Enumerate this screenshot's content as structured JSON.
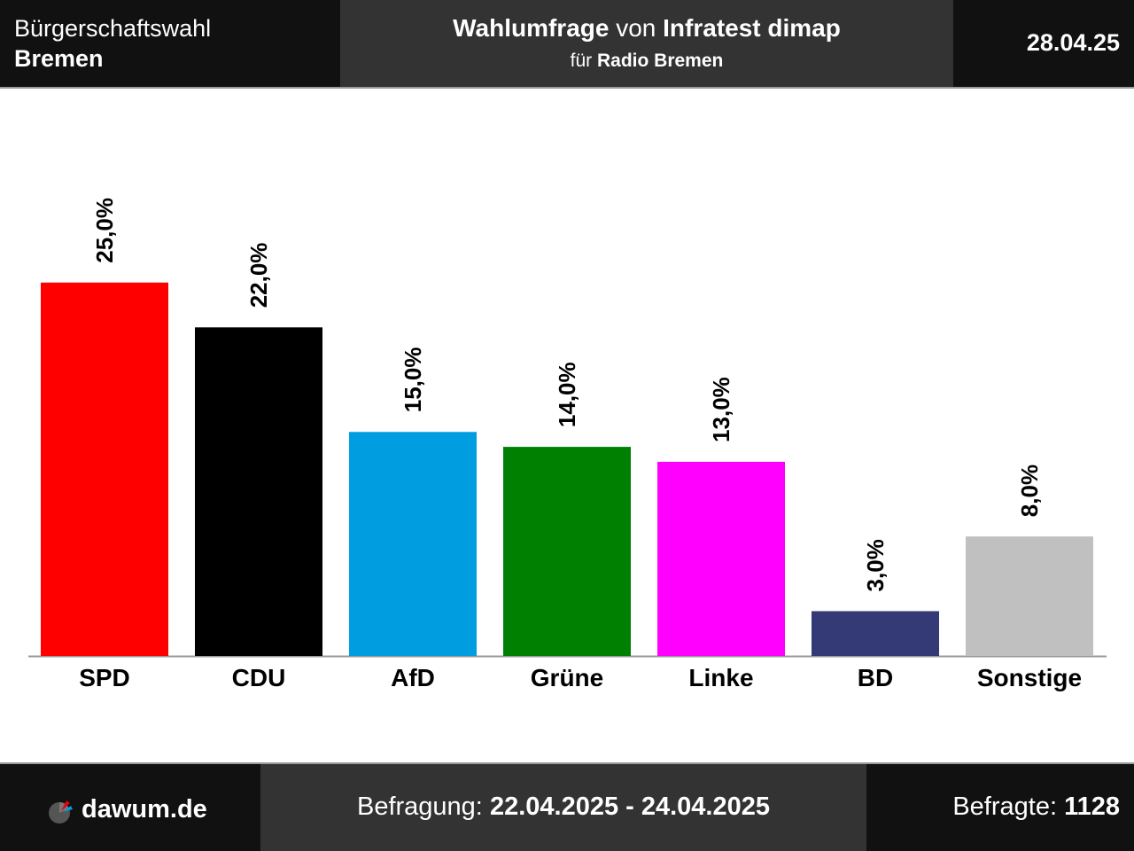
{
  "header": {
    "election_type": "Bürgerschaftswahl",
    "region": "Bremen",
    "title_part1": "Wahlumfrage",
    "title_part2": " von ",
    "institute": "Infratest dimap",
    "client_prefix": "für ",
    "client": "Radio Bremen",
    "date": "28.04.25"
  },
  "footer": {
    "site": "dawum.de",
    "logo_icon": "pie-chart-logo-icon",
    "survey_label": "Befragung: ",
    "survey_period": "22.04.2025 - 24.04.2025",
    "respondents_label": "Befragte: ",
    "respondents": "1128"
  },
  "chart_data": {
    "type": "bar",
    "categories": [
      "SPD",
      "CDU",
      "AfD",
      "Grüne",
      "Linke",
      "BD",
      "Sonstige"
    ],
    "values": [
      25.0,
      22.0,
      15.0,
      14.0,
      13.0,
      3.0,
      8.0
    ],
    "labels": [
      "25,0%",
      "22,0%",
      "15,0%",
      "14,0%",
      "13,0%",
      "3,0%",
      "8,0%"
    ],
    "colors": [
      "#ff0000",
      "#000000",
      "#009ee0",
      "#008000",
      "#ff00ff",
      "#333a75",
      "#c0c0c0"
    ],
    "title": "",
    "xlabel": "",
    "ylabel": "",
    "ylim": [
      0,
      25
    ]
  }
}
